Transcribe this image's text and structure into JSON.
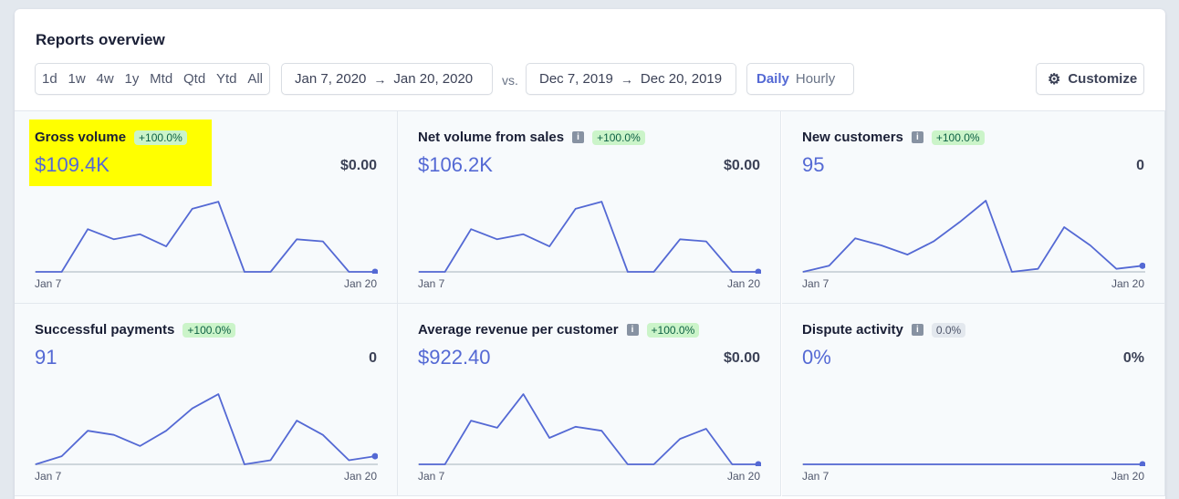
{
  "title": "Reports overview",
  "ranges": [
    "1d",
    "1w",
    "4w",
    "1y",
    "Mtd",
    "Qtd",
    "Ytd",
    "All"
  ],
  "date_range": {
    "start": "Jan 7, 2020",
    "end": "Jan 20, 2020"
  },
  "vs_label": "vs.",
  "compare_range": {
    "start": "Dec 7, 2019",
    "end": "Dec 20, 2019"
  },
  "granularity": {
    "daily": "Daily",
    "hourly": "Hourly",
    "selected": "Daily"
  },
  "customize_label": "Customize",
  "colors": {
    "accent": "#5469d4",
    "badge_bg": "#cbf4c9",
    "badge_text": "#0e6245",
    "highlight": "#ffff00"
  },
  "cards": [
    {
      "title": "Gross volume",
      "info": false,
      "badge": "+100.0%",
      "badge_type": "positive",
      "value": "$109.4K",
      "compare": "$0.00",
      "axis_start": "Jan 7",
      "axis_end": "Jan 20",
      "highlighted": true,
      "series": [
        0,
        0,
        42,
        32,
        37,
        25,
        62,
        69,
        0,
        0,
        32,
        30,
        0,
        0
      ]
    },
    {
      "title": "Net volume from sales",
      "info": true,
      "badge": "+100.0%",
      "badge_type": "positive",
      "value": "$106.2K",
      "compare": "$0.00",
      "axis_start": "Jan 7",
      "axis_end": "Jan 20",
      "highlighted": false,
      "series": [
        0,
        0,
        42,
        32,
        37,
        25,
        62,
        69,
        0,
        0,
        32,
        30,
        0,
        0
      ]
    },
    {
      "title": "New customers",
      "info": true,
      "badge": "+100.0%",
      "badge_type": "positive",
      "value": "95",
      "compare": "0",
      "axis_start": "Jan 7",
      "axis_end": "Jan 20",
      "highlighted": false,
      "series": [
        0,
        6,
        33,
        26,
        17,
        30,
        49,
        70,
        0,
        3,
        44,
        26,
        3,
        6
      ]
    },
    {
      "title": "Successful payments",
      "info": false,
      "badge": "+100.0%",
      "badge_type": "positive",
      "value": "91",
      "compare": "0",
      "axis_start": "Jan 7",
      "axis_end": "Jan 20",
      "highlighted": false,
      "series": [
        0,
        8,
        33,
        29,
        18,
        33,
        55,
        69,
        0,
        4,
        43,
        29,
        4,
        8
      ]
    },
    {
      "title": "Average revenue per customer",
      "info": true,
      "badge": "+100.0%",
      "badge_type": "positive",
      "value": "$922.40",
      "compare": "$0.00",
      "axis_start": "Jan 7",
      "axis_end": "Jan 20",
      "highlighted": false,
      "series": [
        0,
        0,
        43,
        36,
        69,
        26,
        37,
        33,
        0,
        0,
        25,
        35,
        0,
        0
      ]
    },
    {
      "title": "Dispute activity",
      "info": true,
      "badge": "0.0%",
      "badge_type": "neutral",
      "value": "0%",
      "compare": "0%",
      "axis_start": "Jan 7",
      "axis_end": "Jan 20",
      "highlighted": false,
      "series": [
        0,
        0,
        0,
        0,
        0,
        0,
        0,
        0,
        0,
        0,
        0,
        0,
        0,
        0
      ]
    }
  ]
}
